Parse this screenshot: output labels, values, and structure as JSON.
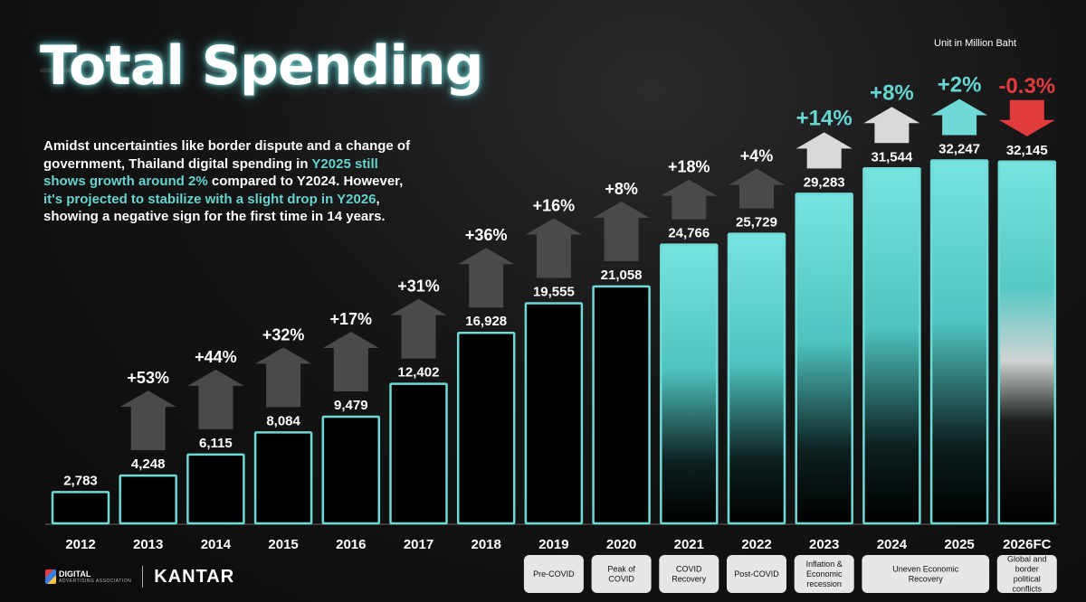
{
  "header": {
    "title": "Total Spending",
    "unit": "Unit in Million Baht"
  },
  "description": {
    "part1": "Amidst uncertainties like border dispute and a change of government, Thailand digital spending in ",
    "highlight1": "Y2025 still shows growth around 2%",
    "part2": " compared to Y2024. However, ",
    "highlight2": "it's projected to stabilize with a slight drop in Y2026",
    "part3": ", showing a negative sign for the first time in 14 years."
  },
  "chart_data": {
    "type": "bar",
    "title": "Total Spending",
    "ylabel": "Million Baht",
    "ylim": [
      0,
      33000
    ],
    "categories": [
      "2012",
      "2013",
      "2014",
      "2015",
      "2016",
      "2017",
      "2018",
      "2019",
      "2020",
      "2021",
      "2022",
      "2023",
      "2024",
      "2025",
      "2026FC"
    ],
    "values": [
      2783,
      4248,
      6115,
      8084,
      9479,
      12402,
      16928,
      19555,
      21058,
      24766,
      25729,
      29283,
      31544,
      32247,
      32145
    ],
    "value_labels": [
      "2,783",
      "4,248",
      "6,115",
      "8,084",
      "9,479",
      "12,402",
      "16,928",
      "19,555",
      "21,058",
      "24,766",
      "25,729",
      "29,283",
      "31,544",
      "32,247",
      "32,145"
    ],
    "growth_labels": [
      "",
      "+53%",
      "+44%",
      "+32%",
      "+17%",
      "+31%",
      "+36%",
      "+16%",
      "+8%",
      "+18%",
      "+4%",
      "+14%",
      "+8%",
      "+2%",
      "-0.3%"
    ],
    "period_labels": [
      {
        "from": 7,
        "to": 7,
        "text": "Pre-COVID"
      },
      {
        "from": 8,
        "to": 8,
        "text": "Peak of COVID"
      },
      {
        "from": 9,
        "to": 9,
        "text": "COVID Recovery"
      },
      {
        "from": 10,
        "to": 10,
        "text": "Post-COVID"
      },
      {
        "from": 11,
        "to": 11,
        "text": "Inflation & Economic recession"
      },
      {
        "from": 12,
        "to": 13,
        "text": "Uneven Economic Recovery"
      },
      {
        "from": 14,
        "to": 14,
        "text": "Global and border political conflicts"
      }
    ]
  },
  "colors": {
    "accent": "#67d6d2",
    "bar_outline": "#6fd9d5",
    "arrow_dark": "#4a4a4a",
    "arrow_light": "#d9d9d9",
    "negative": "#e23b3b"
  },
  "footer": {
    "brand1_line1": "DIGITAL",
    "brand1_line2": "ADVERTISING ASSOCIATION",
    "brand2": "KANTAR"
  }
}
